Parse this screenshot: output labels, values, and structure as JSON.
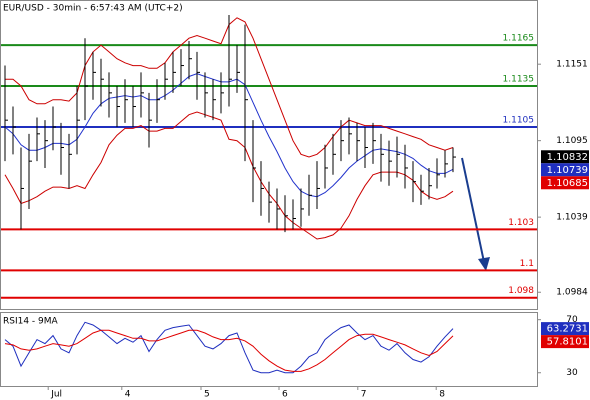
{
  "chart_data": [
    {
      "type": "ohlc",
      "title": "EUR/USD - 30min - 6:57:43 AM (UTC+2)",
      "xlim": [
        -0.625,
        66.5
      ],
      "xticks": [
        {
          "value": 5.4,
          "label": "Jul"
        },
        {
          "value": 14.6,
          "label": "4"
        },
        {
          "value": 24.5,
          "label": "5"
        },
        {
          "value": 34.25,
          "label": "6"
        },
        {
          "value": 44.1,
          "label": "7"
        },
        {
          "value": 53.9,
          "label": "8"
        }
      ],
      "ylim": [
        1.0971,
        1.1198
      ],
      "yticks": [
        1.1151,
        1.1095,
        1.1039,
        1.0984
      ],
      "high": [
        1.115,
        1.112,
        1.109,
        1.11,
        1.1112,
        1.111,
        1.112,
        1.1108,
        1.11,
        1.1135,
        1.117,
        1.116,
        1.1155,
        1.1145,
        1.1135,
        1.114,
        1.1135,
        1.1145,
        1.113,
        1.114,
        1.1152,
        1.116,
        1.1162,
        1.1168,
        1.116,
        1.1145,
        1.114,
        1.1145,
        1.1187,
        1.1165,
        1.118,
        1.111,
        1.108,
        1.1065,
        1.106,
        1.1055,
        1.1052,
        1.106,
        1.107,
        1.108,
        1.1092,
        1.11,
        1.111,
        1.1112,
        1.1108,
        1.1105,
        1.1108,
        1.11,
        1.1095,
        1.1098,
        1.1092,
        1.108,
        1.107,
        1.1075,
        1.1082,
        1.1088,
        1.109
      ],
      "low": [
        1.108,
        1.1085,
        1.103,
        1.1045,
        1.108,
        1.1075,
        1.1088,
        1.107,
        1.106,
        1.1085,
        1.111,
        1.1125,
        1.112,
        1.1112,
        1.1105,
        1.1108,
        1.1105,
        1.1112,
        1.109,
        1.1108,
        1.1125,
        1.113,
        1.1135,
        1.114,
        1.1125,
        1.1112,
        1.111,
        1.1115,
        1.112,
        1.113,
        1.108,
        1.105,
        1.104,
        1.1035,
        1.103,
        1.1028,
        1.103,
        1.1032,
        1.104,
        1.1045,
        1.106,
        1.107,
        1.108,
        1.1085,
        1.108,
        1.1075,
        1.1078,
        1.1065,
        1.1062,
        1.1068,
        1.106,
        1.105,
        1.1048,
        1.1052,
        1.106,
        1.1068,
        1.1072
      ],
      "close": [
        1.111,
        1.1105,
        1.106,
        1.108,
        1.11,
        1.1095,
        1.1105,
        1.109,
        1.1085,
        1.111,
        1.1135,
        1.1145,
        1.114,
        1.113,
        1.112,
        1.1125,
        1.112,
        1.113,
        1.111,
        1.1125,
        1.114,
        1.1145,
        1.115,
        1.1155,
        1.1145,
        1.113,
        1.1125,
        1.113,
        1.114,
        1.1145,
        1.1125,
        1.1075,
        1.106,
        1.105,
        1.1045,
        1.104,
        1.1038,
        1.1045,
        1.1055,
        1.106,
        1.1075,
        1.1085,
        1.1095,
        1.11,
        1.1095,
        1.109,
        1.1095,
        1.1085,
        1.108,
        1.1085,
        1.1075,
        1.1065,
        1.1058,
        1.1062,
        1.107,
        1.1078,
        1.1083
      ],
      "bar_color": "#000000",
      "lines": [
        {
          "color": "#2233cc",
          "values": [
            1.1105,
            1.11,
            1.1092,
            1.1088,
            1.1088,
            1.109,
            1.1093,
            1.1093,
            1.1092,
            1.1096,
            1.1105,
            1.1115,
            1.1122,
            1.1126,
            1.1127,
            1.1128,
            1.1127,
            1.1128,
            1.1125,
            1.1125,
            1.1128,
            1.1132,
            1.1137,
            1.1142,
            1.1144,
            1.1142,
            1.114,
            1.1138,
            1.1138,
            1.114,
            1.1136,
            1.1123,
            1.111,
            1.1098,
            1.1087,
            1.1075,
            1.1065,
            1.1058,
            1.1055,
            1.1054,
            1.1057,
            1.1062,
            1.1068,
            1.1075,
            1.108,
            1.1084,
            1.1088,
            1.1089,
            1.1088,
            1.1087,
            1.1085,
            1.1082,
            1.1077,
            1.1073,
            1.1071,
            1.1071,
            1.1074
          ]
        },
        {
          "color": "#cc0000",
          "values": [
            1.114,
            1.114,
            1.1135,
            1.1125,
            1.1122,
            1.1122,
            1.1125,
            1.1125,
            1.1124,
            1.113,
            1.115,
            1.116,
            1.1165,
            1.116,
            1.1155,
            1.1152,
            1.115,
            1.115,
            1.1148,
            1.1148,
            1.1152,
            1.116,
            1.1165,
            1.117,
            1.1172,
            1.117,
            1.1168,
            1.1166,
            1.118,
            1.1185,
            1.1182,
            1.117,
            1.1155,
            1.114,
            1.1125,
            1.111,
            1.1095,
            1.1085,
            1.1083,
            1.1085,
            1.109,
            1.1098,
            1.1105,
            1.111,
            1.1108,
            1.1106,
            1.1106,
            1.1106,
            1.1104,
            1.1102,
            1.11,
            1.1098,
            1.1096,
            1.1092,
            1.109,
            1.1088,
            1.109
          ]
        },
        {
          "color": "#cc0000",
          "values": [
            1.107,
            1.106,
            1.1049,
            1.1051,
            1.1054,
            1.1058,
            1.1061,
            1.1061,
            1.106,
            1.1062,
            1.106,
            1.107,
            1.1079,
            1.1092,
            1.1099,
            1.1104,
            1.1104,
            1.1106,
            1.1102,
            1.1102,
            1.1104,
            1.1104,
            1.1109,
            1.1114,
            1.1116,
            1.1114,
            1.1112,
            1.111,
            1.1096,
            1.1095,
            1.109,
            1.1076,
            1.1065,
            1.1056,
            1.1049,
            1.104,
            1.1035,
            1.1031,
            1.1027,
            1.1023,
            1.1024,
            1.1026,
            1.1031,
            1.104,
            1.1052,
            1.1062,
            1.107,
            1.1072,
            1.1072,
            1.1072,
            1.107,
            1.1066,
            1.1058,
            1.1054,
            1.1052,
            1.1054,
            1.1058
          ]
        }
      ],
      "levels": [
        {
          "value": 1.1165,
          "color": "#1a8a1a"
        },
        {
          "value": 1.1135,
          "color": "#1a8a1a"
        },
        {
          "value": 1.1105,
          "color": "#1f2fbf"
        },
        {
          "value": 1.103,
          "color": "#e00000"
        },
        {
          "value": 1.1,
          "color": "#e00000"
        },
        {
          "value": 1.098,
          "color": "#e00000"
        }
      ],
      "tags": [
        {
          "value": 1.10832,
          "color": "#000000"
        },
        {
          "value": 1.10739,
          "color": "#1f2fbf"
        },
        {
          "value": 1.10685,
          "color": "#e00000"
        }
      ]
    },
    {
      "type": "line",
      "title": "RSI14 - 9MA",
      "ylim": [
        20,
        75.8
      ],
      "yticks": [
        70,
        30
      ],
      "series": [
        {
          "color": "#1f2fbf",
          "values": [
            55,
            50,
            35,
            45,
            55,
            52,
            58,
            48,
            45,
            58,
            68,
            66,
            62,
            57,
            52,
            56,
            53,
            58,
            46,
            55,
            62,
            64,
            65,
            66,
            58,
            50,
            48,
            52,
            58,
            60,
            45,
            32,
            30,
            30,
            32,
            30,
            30,
            35,
            42,
            45,
            55,
            60,
            64,
            66,
            60,
            55,
            58,
            50,
            47,
            52,
            45,
            40,
            38,
            42,
            50,
            57,
            63.2731
          ]
        },
        {
          "color": "#e00000",
          "values": [
            52,
            51,
            48,
            47,
            48,
            50,
            52,
            51,
            50,
            52,
            56,
            60,
            62,
            62,
            60,
            58,
            56,
            56,
            54,
            54,
            56,
            58,
            60,
            62,
            62,
            60,
            57,
            55,
            55,
            56,
            54,
            50,
            44,
            39,
            35,
            32,
            31,
            31,
            33,
            36,
            40,
            45,
            50,
            55,
            58,
            59,
            59,
            57,
            55,
            53,
            51,
            48,
            45,
            43,
            46,
            52,
            57.8101
          ]
        }
      ],
      "tags": [
        {
          "value": 63.2731,
          "color": "#1f2fbf"
        },
        {
          "value": 57.8101,
          "color": "#e00000"
        }
      ]
    }
  ]
}
